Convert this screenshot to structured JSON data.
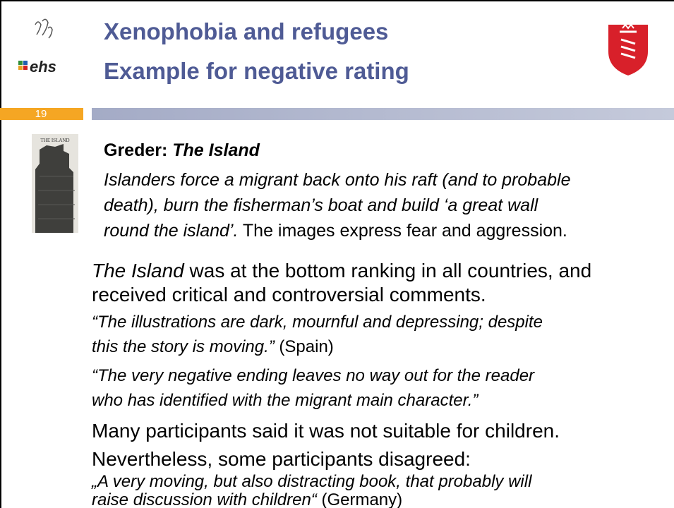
{
  "header": {
    "logo": "ehs",
    "title_lines": [
      "Xenophobia and refugees",
      "Example for negative rating"
    ],
    "slide_number": "19"
  },
  "book_cover": {
    "title": "THE ISLAND"
  },
  "lines": [
    {
      "runs": [
        {
          "text": "Greder: ",
          "style": "bold"
        },
        {
          "text": "The Island",
          "style": "bold-italic"
        }
      ]
    },
    {
      "runs": [
        {
          "text": "Islanders force a migrant back onto his raft (and to probable",
          "style": "italic"
        }
      ]
    },
    {
      "runs": [
        {
          "text": "death), burn the fisherman’s boat and build ‘a great wall",
          "style": "italic"
        }
      ]
    },
    {
      "runs": [
        {
          "text": "round the island’.",
          "style": "italic"
        },
        {
          "text": " The images express fear and aggression.",
          "style": "normal"
        }
      ]
    },
    {
      "runs": [
        {
          "text": "The Island",
          "style": "italic"
        },
        {
          "text": " was at the bottom ranking in all countries, and",
          "style": "normal"
        }
      ]
    },
    {
      "runs": [
        {
          "text": "received critical and controversial comments.",
          "style": "normal"
        }
      ]
    },
    {
      "runs": [
        {
          "text": "“The illustrations are dark, mournful and depressing; despite",
          "style": "italic"
        }
      ]
    },
    {
      "runs": [
        {
          "text": "this the story is moving.”",
          "style": "italic"
        },
        {
          "text": " (Spain)",
          "style": "normal"
        }
      ]
    },
    {
      "runs": [
        {
          "text": "“The very negative ending leaves no way out for the reader",
          "style": "italic"
        }
      ]
    },
    {
      "runs": [
        {
          "text": "who has identified with the migrant main character.”",
          "style": "italic"
        }
      ]
    },
    {
      "runs": [
        {
          "text": "Many participants said it was not suitable for children.",
          "style": "normal"
        }
      ]
    },
    {
      "runs": [
        {
          "text": "Nevertheless, some participants disagreed:",
          "style": "normal"
        }
      ]
    },
    {
      "runs": [
        {
          "text": "„A very moving, but also distracting book, that probably will",
          "style": "italic"
        }
      ]
    },
    {
      "runs": [
        {
          "text": "raise discussion with children“",
          "style": "italic"
        },
        {
          "text": " (Germany)",
          "style": "normal"
        }
      ]
    }
  ]
}
